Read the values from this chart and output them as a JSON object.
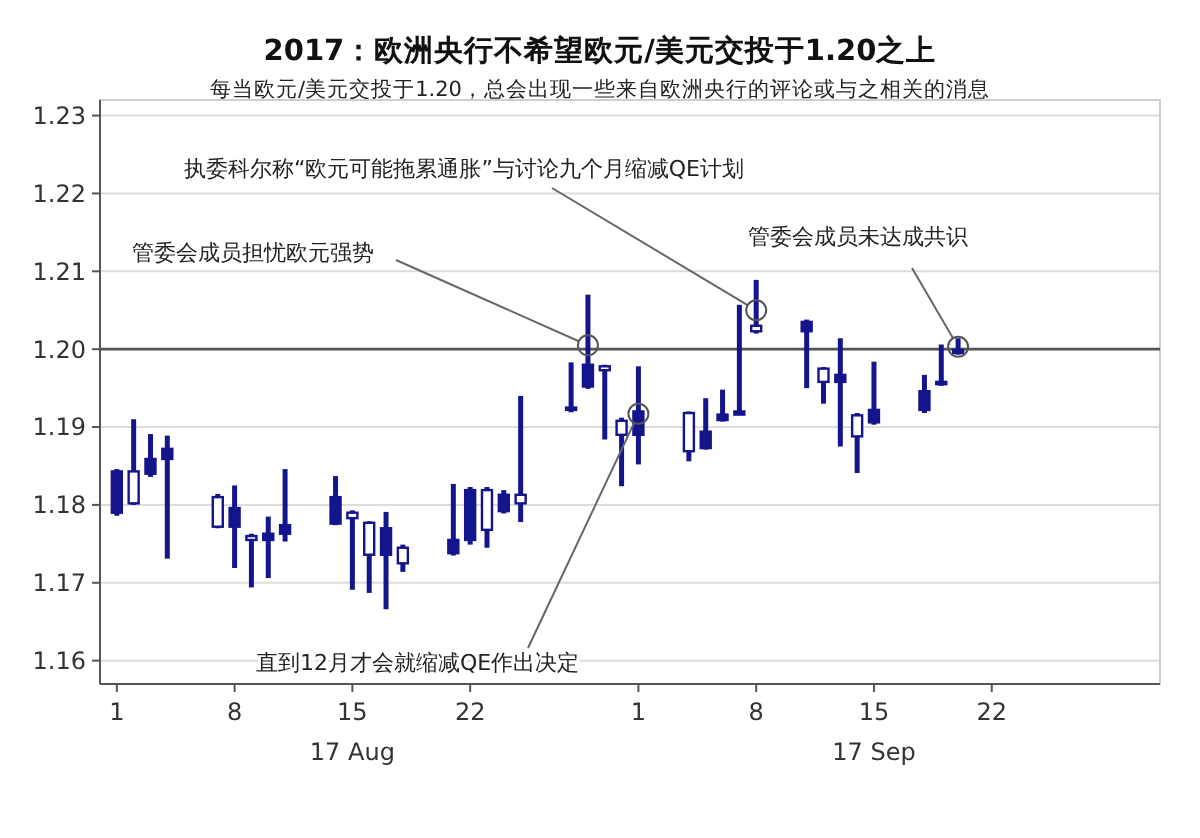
{
  "chart_data": {
    "type": "candlestick",
    "title": "2017：欧洲央行不希望欧元/美元交投于1.20之上",
    "subtitle": "每当欧元/美元交投于1.20，总会出现一些来自欧洲央行的评论或与之相关的消息",
    "x": [
      "2017-08-01",
      "2017-08-02",
      "2017-08-03",
      "2017-08-04",
      "2017-08-07",
      "2017-08-08",
      "2017-08-09",
      "2017-08-10",
      "2017-08-11",
      "2017-08-14",
      "2017-08-15",
      "2017-08-16",
      "2017-08-17",
      "2017-08-18",
      "2017-08-21",
      "2017-08-22",
      "2017-08-23",
      "2017-08-24",
      "2017-08-25",
      "2017-08-28",
      "2017-08-29",
      "2017-08-30",
      "2017-08-31",
      "2017-09-01",
      "2017-09-04",
      "2017-09-05",
      "2017-09-06",
      "2017-09-07",
      "2017-09-08",
      "2017-09-11",
      "2017-09-12",
      "2017-09-13",
      "2017-09-14",
      "2017-09-15",
      "2017-09-18",
      "2017-09-19",
      "2017-09-20"
    ],
    "xlim": [
      "2017-07-31",
      "2017-10-02"
    ],
    "xticks": [
      {
        "value": "2017-08-01",
        "label": "1"
      },
      {
        "value": "2017-08-08",
        "label": "8"
      },
      {
        "value": "2017-08-15",
        "label": "15"
      },
      {
        "value": "2017-08-22",
        "label": "22"
      },
      {
        "value": "2017-09-01",
        "label": "1"
      },
      {
        "value": "2017-09-08",
        "label": "8"
      },
      {
        "value": "2017-09-15",
        "label": "15"
      },
      {
        "value": "2017-09-22",
        "label": "22"
      }
    ],
    "ohlc": [
      [
        1.179,
        1.1846,
        1.1786,
        1.1843
      ],
      [
        1.1843,
        1.191,
        1.18,
        1.1802
      ],
      [
        1.184,
        1.1891,
        1.1836,
        1.1859
      ],
      [
        1.1859,
        1.1889,
        1.1731,
        1.1872
      ],
      [
        1.181,
        1.1814,
        1.177,
        1.1772
      ],
      [
        1.1772,
        1.1825,
        1.1719,
        1.1796
      ],
      [
        1.176,
        1.1763,
        1.1694,
        1.1755
      ],
      [
        1.1755,
        1.1785,
        1.1706,
        1.1763
      ],
      [
        1.1763,
        1.1846,
        1.1753,
        1.1774
      ],
      [
        1.1776,
        1.1837,
        1.1774,
        1.181
      ],
      [
        1.179,
        1.1793,
        1.1691,
        1.1783
      ],
      [
        1.1777,
        1.1779,
        1.1687,
        1.1736
      ],
      [
        1.1736,
        1.1791,
        1.1666,
        1.177
      ],
      [
        1.1745,
        1.1749,
        1.1714,
        1.1725
      ],
      [
        1.1738,
        1.1827,
        1.1735,
        1.1755
      ],
      [
        1.1755,
        1.1823,
        1.1749,
        1.1819
      ],
      [
        1.1819,
        1.1823,
        1.1745,
        1.1768
      ],
      [
        1.1792,
        1.1819,
        1.1789,
        1.1813
      ],
      [
        1.1813,
        1.194,
        1.1778,
        1.1802
      ],
      [
        1.1922,
        1.1983,
        1.1919,
        1.1925
      ],
      [
        1.1952,
        1.207,
        1.1949,
        1.198
      ],
      [
        1.1978,
        1.198,
        1.1884,
        1.1973
      ],
      [
        1.1908,
        1.1912,
        1.1824,
        1.189
      ],
      [
        1.189,
        1.1978,
        1.1852,
        1.192
      ],
      [
        1.1918,
        1.192,
        1.1856,
        1.1869
      ],
      [
        1.1873,
        1.1937,
        1.1871,
        1.1894
      ],
      [
        1.1909,
        1.1948,
        1.1907,
        1.1916
      ],
      [
        1.1916,
        1.2057,
        1.1916,
        1.192
      ],
      [
        1.203,
        1.2089,
        1.202,
        1.2023
      ],
      [
        1.2023,
        1.2038,
        1.195,
        1.2035
      ],
      [
        1.1975,
        1.1977,
        1.193,
        1.1958
      ],
      [
        1.1958,
        1.2014,
        1.1875,
        1.1967
      ],
      [
        1.1915,
        1.1918,
        1.1841,
        1.1888
      ],
      [
        1.1906,
        1.1984,
        1.1903,
        1.1922
      ],
      [
        1.1922,
        1.1967,
        1.1918,
        1.1946
      ],
      [
        1.1955,
        1.2006,
        1.1953,
        1.1958
      ],
      [
        1.1995,
        1.2014,
        1.1993,
        1.1999
      ]
    ],
    "color": "#14148c",
    "ylim": [
      1.157,
      1.232
    ],
    "yticks": [
      {
        "value": 1.16,
        "label": "1.16"
      },
      {
        "value": 1.17,
        "label": "1.17"
      },
      {
        "value": 1.18,
        "label": "1.18"
      },
      {
        "value": 1.19,
        "label": "1.19"
      },
      {
        "value": 1.2,
        "label": "1.20"
      },
      {
        "value": 1.21,
        "label": "1.21"
      },
      {
        "value": 1.22,
        "label": "1.22"
      },
      {
        "value": 1.23,
        "label": "1.23"
      }
    ],
    "grid": "y",
    "ref_lines": [
      {
        "axis": "y",
        "value": 1.2,
        "color": "#555555"
      }
    ],
    "annotations": [
      {
        "text": "管委会成员担忧欧元强势",
        "x": "2017-08-29",
        "y": 1.2005
      },
      {
        "text": "执委科尔称“欧元可能拖累通胀”与讨论九个月缩减QE计划",
        "x": "2017-09-08",
        "y": 1.205
      },
      {
        "text": "直到12月才会就缩减QE作出决定",
        "x": "2017-09-01",
        "y": 1.1917
      },
      {
        "text": "管委会成员未达成共识",
        "x": "2017-09-20",
        "y": 1.2003
      },
      "17 Aug",
      "17 Sep"
    ]
  }
}
